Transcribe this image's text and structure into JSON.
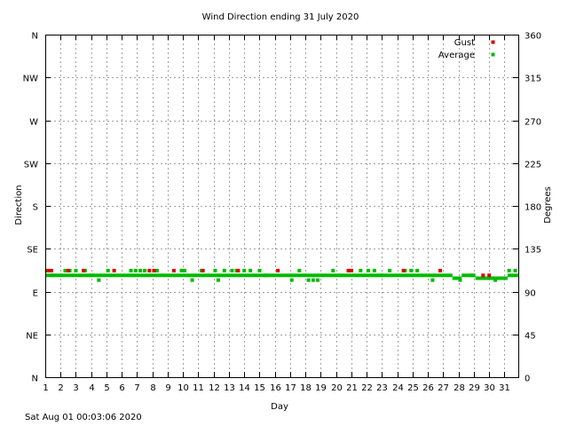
{
  "chart_data": {
    "type": "scatter",
    "title": "Wind Direction ending 31 July 2020",
    "xlabel": "Day",
    "ylabel_left": "Direction",
    "ylabel_right": "Degrees",
    "xlim": [
      1,
      31.9
    ],
    "ylim": [
      0,
      360
    ],
    "x_ticks": [
      "1",
      "2",
      "3",
      "4",
      "5",
      "6",
      "7",
      "8",
      "9",
      "10",
      "11",
      "12",
      "13",
      "14",
      "15",
      "16",
      "17",
      "18",
      "19",
      "20",
      "21",
      "22",
      "23",
      "24",
      "25",
      "26",
      "27",
      "28",
      "29",
      "30",
      "31"
    ],
    "y_left_ticks": [
      {
        "label": "N",
        "value": 0
      },
      {
        "label": "NE",
        "value": 45
      },
      {
        "label": "E",
        "value": 90
      },
      {
        "label": "SE",
        "value": 135
      },
      {
        "label": "S",
        "value": 180
      },
      {
        "label": "SW",
        "value": 225
      },
      {
        "label": "W",
        "value": 270
      },
      {
        "label": "NW",
        "value": 315
      },
      {
        "label": "N",
        "value": 360
      }
    ],
    "y_right_ticks": [
      "0",
      "45",
      "90",
      "135",
      "180",
      "225",
      "270",
      "315",
      "360"
    ],
    "grid": true,
    "legend_position": "top-right",
    "colors": {
      "gust": "#dd0000",
      "average": "#00bb00",
      "axes": "#000000",
      "grid": "#a0a0a0"
    },
    "series": [
      {
        "name": "Gust",
        "x": [
          1.2,
          1.4,
          2.5,
          3.5,
          5.5,
          7.8,
          8.1,
          9.4,
          11.3,
          13.6,
          16.2,
          20.8,
          21.0,
          24.4,
          26.8,
          29.6,
          30.0
        ],
        "y": [
          112,
          112,
          112,
          112,
          112,
          112,
          112,
          112,
          112,
          112,
          112,
          112,
          112,
          112,
          112,
          107,
          107
        ]
      },
      {
        "name": "Average",
        "segments": [
          {
            "from": 1.0,
            "to": 27.6,
            "y": 107
          },
          {
            "from": 27.6,
            "to": 28.2,
            "y": 104
          },
          {
            "from": 28.2,
            "to": 29.1,
            "y": 107
          },
          {
            "from": 29.1,
            "to": 31.2,
            "y": 104
          },
          {
            "from": 31.2,
            "to": 31.9,
            "y": 107
          }
        ],
        "x": [
          1.1,
          1.5,
          2.3,
          2.6,
          3.0,
          3.6,
          4.0,
          4.5,
          5.1,
          6.6,
          6.9,
          7.2,
          7.5,
          8.3,
          9.9,
          10.1,
          10.6,
          11.2,
          12.1,
          12.3,
          12.7,
          13.2,
          13.5,
          14.0,
          14.4,
          15.0,
          15.4,
          17.1,
          17.6,
          18.2,
          18.5,
          18.8,
          19.8,
          20.9,
          21.6,
          22.1,
          22.5,
          23.0,
          23.5,
          24.5,
          24.9,
          25.3,
          26.3,
          28.1,
          28.8,
          30.4,
          31.3,
          31.7
        ],
        "y": [
          112,
          107,
          112,
          112,
          112,
          112,
          107,
          102,
          112,
          112,
          112,
          112,
          112,
          112,
          112,
          112,
          102,
          112,
          112,
          102,
          112,
          112,
          112,
          112,
          112,
          112,
          107,
          102,
          112,
          102,
          102,
          102,
          112,
          112,
          112,
          112,
          112,
          107,
          112,
          112,
          112,
          112,
          102,
          102,
          107,
          102,
          112,
          112
        ]
      }
    ]
  },
  "footer": {
    "timestamp": "Sat Aug 01 00:03:06 2020"
  }
}
